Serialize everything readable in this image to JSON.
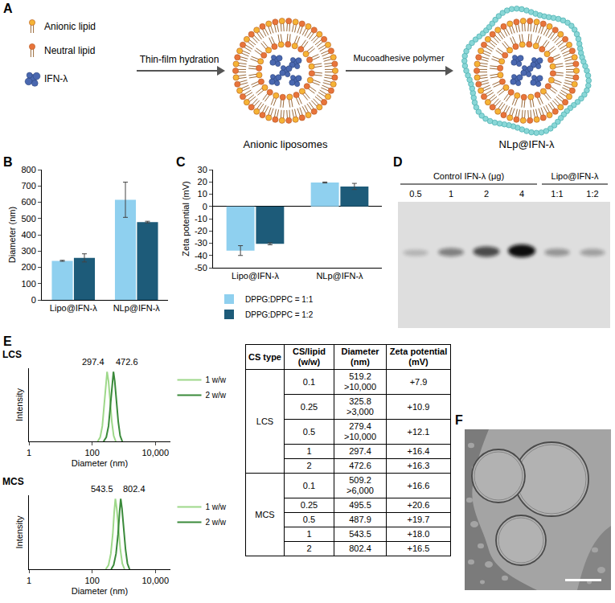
{
  "panel_letters": [
    "A",
    "B",
    "C",
    "D",
    "E",
    "F"
  ],
  "panel_a": {
    "components": [
      "Anionic lipid",
      "Neutral lipid",
      "IFN-λ"
    ],
    "steps": [
      "Thin-film hydration",
      "Mucoadhesive polymer"
    ],
    "products": [
      "Anionic liposomes",
      "NLp@IFN-λ"
    ]
  },
  "chart_data": [
    {
      "type": "bar",
      "categories": [
        "Lipo@IFN-λ",
        "NLp@IFN-λ"
      ],
      "y_label": "Diameter (nm)",
      "ylim": [
        0,
        800
      ],
      "yticks": [
        0,
        100,
        200,
        300,
        400,
        500,
        600,
        700,
        800
      ],
      "grid": false,
      "series": [
        {
          "name": "DPPG:DPPC = 1:1",
          "color": "#8fd0ef",
          "values": [
            240,
            615
          ],
          "errors": [
            3,
            108
          ]
        },
        {
          "name": "DPPG:DPPC = 1:2",
          "color": "#1d5b79",
          "values": [
            258,
            478
          ],
          "errors": [
            25,
            5
          ]
        }
      ]
    },
    {
      "type": "bar",
      "categories": [
        "Lipo@IFN-λ",
        "NLp@IFN-λ"
      ],
      "y_label": "Zeta potential (mV)",
      "ylim": [
        -50,
        30
      ],
      "yticks": [
        -50,
        -40,
        -30,
        -20,
        -10,
        0,
        10,
        20,
        30
      ],
      "grid": false,
      "legend": "bottom",
      "series": [
        {
          "name": "DPPG:DPPC = 1:1",
          "color": "#8fd0ef",
          "values": [
            -36,
            19.5
          ],
          "errors": [
            4,
            0.4
          ]
        },
        {
          "name": "DPPG:DPPC = 1:2",
          "color": "#1d5b79",
          "values": [
            -30.5,
            16.3
          ],
          "errors": [
            0.8,
            2.5
          ]
        }
      ]
    },
    {
      "type": "line",
      "title": "LCS",
      "log": "x",
      "x_label": "Diameter (nm)",
      "y_label": "Intensity",
      "xlim": [
        1,
        30000
      ],
      "xticks": [
        1,
        100,
        {
          "value": 10000,
          "label": "10,000"
        }
      ],
      "ylim": [
        0,
        105
      ],
      "tick_labels": "x",
      "legend": "right",
      "series": [
        {
          "name": "1 w/w",
          "color": "#9ed88a",
          "x": [
            150,
            180,
            210,
            240,
            270,
            297.4,
            330,
            370,
            420,
            480,
            560
          ],
          "values": [
            0,
            6,
            22,
            50,
            82,
            100,
            86,
            58,
            28,
            8,
            0
          ]
        },
        {
          "name": "2 w/w",
          "color": "#3a8a3a",
          "x": [
            230,
            280,
            330,
            380,
            430,
            472.6,
            520,
            590,
            670,
            770,
            900
          ],
          "values": [
            0,
            6,
            22,
            50,
            82,
            100,
            86,
            58,
            28,
            8,
            0
          ]
        }
      ],
      "annotations": [
        {
          "text": "297.4",
          "x": 297.4
        },
        {
          "text": "472.6",
          "x": 472.6
        }
      ]
    },
    {
      "type": "line",
      "title": "MCS",
      "log": "x",
      "x_label": "Diameter (nm)",
      "y_label": "Intensity",
      "xlim": [
        1,
        30000
      ],
      "xticks": [
        1,
        100,
        {
          "value": 10000,
          "label": "10,000"
        }
      ],
      "ylim": [
        0,
        105
      ],
      "tick_labels": "x",
      "legend": "right",
      "series": [
        {
          "name": "1 w/w",
          "color": "#9ed88a",
          "x": [
            270,
            330,
            390,
            450,
            500,
            543.5,
            600,
            680,
            780,
            900,
            1060
          ],
          "values": [
            0,
            6,
            22,
            50,
            82,
            100,
            86,
            58,
            28,
            8,
            0
          ]
        },
        {
          "name": "2 w/w",
          "color": "#3a8a3a",
          "x": [
            400,
            480,
            570,
            660,
            740,
            802.4,
            880,
            1000,
            1140,
            1310,
            1530
          ],
          "values": [
            0,
            6,
            22,
            50,
            82,
            100,
            86,
            58,
            28,
            8,
            0
          ]
        }
      ],
      "annotations": [
        {
          "text": "543.5",
          "x": 543.5
        },
        {
          "text": "802.4",
          "x": 802.4
        }
      ]
    }
  ],
  "panel_d": {
    "groups": [
      {
        "title": "Control IFN-λ (μg)",
        "lanes": [
          "0.5",
          "1",
          "2",
          "4"
        ],
        "band_intensity": [
          0.2,
          0.45,
          0.7,
          1
        ]
      },
      {
        "title": "Lipo@IFN-λ",
        "lanes": [
          "1:1",
          "1:2"
        ],
        "band_intensity": [
          0.35,
          0.3
        ]
      }
    ]
  },
  "table": {
    "header": [
      "CS type",
      "CS/lipid (w/w)",
      "Diameter (nm)",
      "Zeta potential (mV)"
    ],
    "groups": [
      {
        "type": "LCS",
        "rows": [
          [
            "0.1",
            [
              "519.2",
              ">10,000"
            ],
            "+7.9"
          ],
          [
            "0.25",
            [
              "325.8",
              ">3,000"
            ],
            "+10.9"
          ],
          [
            "0.5",
            [
              "279.4",
              ">10,000"
            ],
            "+12.1"
          ],
          [
            "1",
            "297.4",
            "+16.4"
          ],
          [
            "2",
            "472.6",
            "+16.3"
          ]
        ]
      },
      {
        "type": "MCS",
        "rows": [
          [
            "0.1",
            [
              "509.2",
              ">6,000"
            ],
            "+16.6"
          ],
          [
            "0.25",
            "495.5",
            "+20.6"
          ],
          [
            "0.5",
            "487.9",
            "+19.7"
          ],
          [
            "1",
            "543.5",
            "+18.0"
          ],
          [
            "2",
            "802.4",
            "+16.5"
          ]
        ]
      }
    ]
  }
}
